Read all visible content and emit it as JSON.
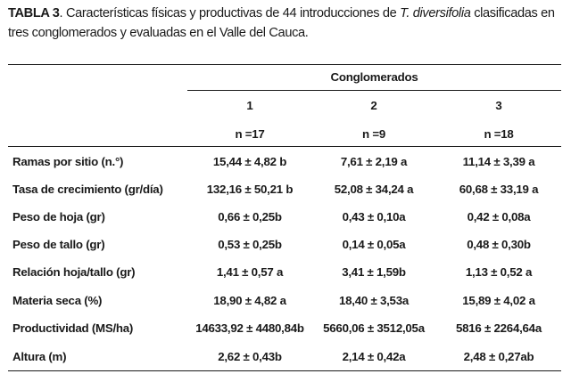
{
  "caption": {
    "label": "TABLA 3",
    "text_before_species": ". Características físicas y productivas de 44 introducciones de ",
    "species": "T. diversifolia",
    "text_after_species": " clasificadas en tres conglomerados y evaluadas en el Valle del Cauca."
  },
  "table": {
    "group_header": "Conglomerados",
    "columns": [
      {
        "number": "1",
        "n": "n =17"
      },
      {
        "number": "2",
        "n": "n =9"
      },
      {
        "number": "3",
        "n": "n =18"
      }
    ],
    "rows": [
      {
        "label": "Ramas por sitio (n.°)",
        "values": [
          "15,44 ± 4,82 b",
          "7,61 ± 2,19 a",
          "11,14 ± 3,39 a"
        ]
      },
      {
        "label": "Tasa de crecimiento (gr/día)",
        "values": [
          "132,16 ± 50,21 b",
          "52,08 ± 34,24 a",
          "60,68 ± 33,19 a"
        ]
      },
      {
        "label": "Peso de hoja (gr)",
        "values": [
          "0,66 ± 0,25b",
          "0,43 ± 0,10a",
          "0,42 ± 0,08a"
        ]
      },
      {
        "label": "Peso de tallo (gr)",
        "values": [
          "0,53 ± 0,25b",
          "0,14 ± 0,05a",
          "0,48 ± 0,30b"
        ]
      },
      {
        "label": "Relación hoja/tallo (gr)",
        "values": [
          "1,41 ± 0,57 a",
          "3,41 ± 1,59b",
          "1,13 ± 0,52 a"
        ]
      },
      {
        "label": "Materia seca (%)",
        "values": [
          "18,90 ± 4,82 a",
          "18,40 ± 3,53a",
          "15,89 ± 4,02 a"
        ]
      },
      {
        "label": "Productividad (MS/ha)",
        "values": [
          "14633,92 ± 4480,84b",
          "5660,06 ± 3512,05a",
          "5816 ± 2264,64a"
        ]
      },
      {
        "label": "Altura (m)",
        "values": [
          "2,62 ± 0,43b",
          "2,14 ± 0,42a",
          "2,48 ± 0,27ab"
        ]
      }
    ]
  }
}
